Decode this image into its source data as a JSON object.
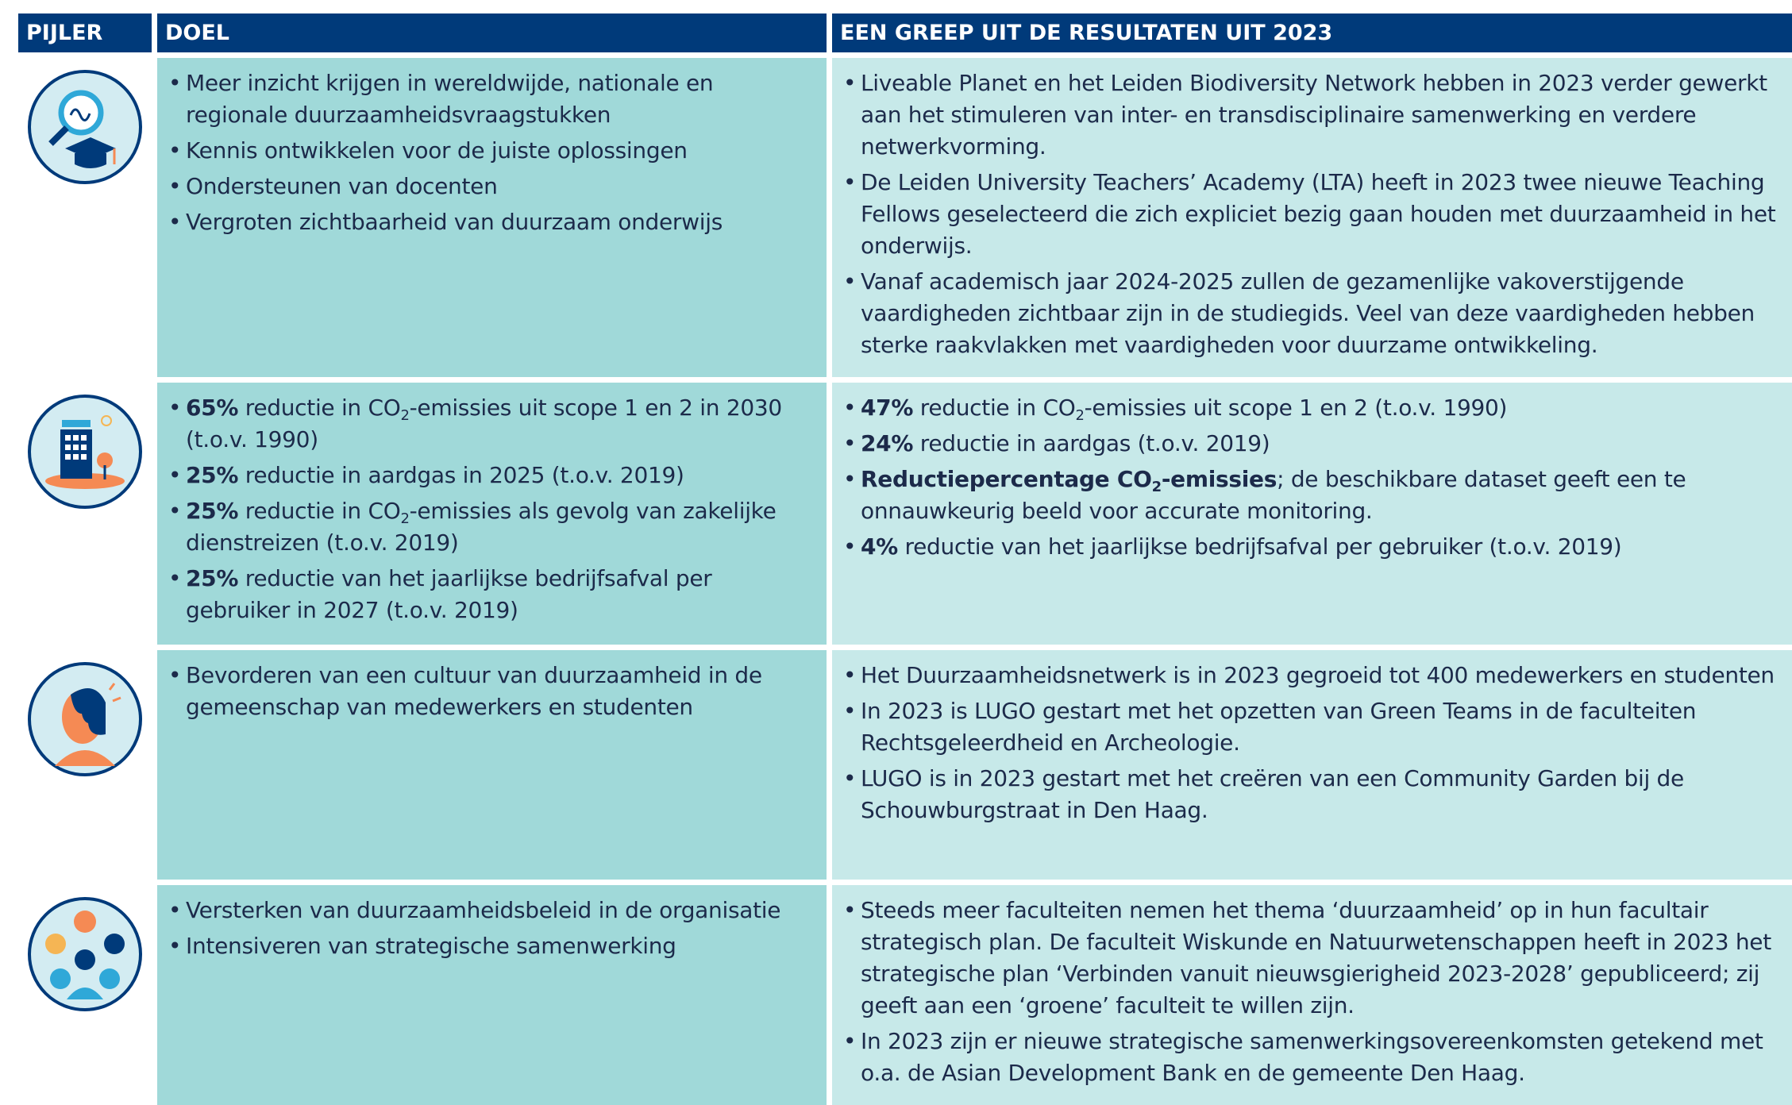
{
  "header": [
    "PIJLER",
    "DOEL",
    "EEN GREEP UIT DE RESULTATEN UIT 2023"
  ],
  "rows": [
    {
      "goals": [
        [
          {
            "text": "Meer inzicht krijgen in wereldwijde, nationale en regionale duurzaamheidsvraagstukken"
          }
        ],
        [
          {
            "text": "Kennis ontwikkelen voor de juiste oplossingen"
          }
        ],
        [
          {
            "text": "Ondersteunen van docenten"
          }
        ],
        [
          {
            "text": "Vergroten zichtbaarheid  van duurzaam onderwijs"
          }
        ]
      ],
      "results": [
        [
          {
            "text": "Liveable Planet en het Leiden Biodiversity Network hebben in 2023 verder gewerkt aan het stimuleren van inter- en transdisciplinaire samenwerking en verdere netwerkvorming."
          }
        ],
        [
          {
            "text": "De Leiden University Teachers’ Academy (LTA) heeft in 2023 twee nieuwe Teaching Fellows geselecteerd die zich expliciet bezig gaan houden met duurzaamheid in het onderwijs."
          }
        ],
        [
          {
            "text": "Vanaf academisch jaar 2024-2025 zullen de gezamenlijke vakoverstijgende vaardigheden zichtbaar zijn in de studiegids. Veel van deze vaardigheden hebben sterke raakvlakken met vaardigheden voor duurzame ontwikkeling."
          }
        ]
      ]
    },
    {
      "goals": [
        [
          {
            "text": "65%",
            "style": "bold"
          },
          {
            "text": " reductie in CO"
          },
          {
            "text": "2",
            "style": "sub"
          },
          {
            "text": "-emissies uit scope 1 en 2 in 2030 (t.o.v. 1990)"
          }
        ],
        [
          {
            "text": "25%",
            "style": "bold"
          },
          {
            "text": " reductie in aardgas in 2025 (t.o.v. 2019)"
          }
        ],
        [
          {
            "text": "25%",
            "style": "bold"
          },
          {
            "text": " reductie in CO"
          },
          {
            "text": "2",
            "style": "sub"
          },
          {
            "text": "-emissies als gevolg van zakelijke dienstreizen (t.o.v. 2019)"
          }
        ],
        [
          {
            "text": "25%",
            "style": "bold"
          },
          {
            "text": " reductie van het jaarlijkse bedrijfsafval per gebruiker in 2027 (t.o.v. 2019)"
          }
        ]
      ],
      "results": [
        [
          {
            "text": "47%",
            "style": "bold"
          },
          {
            "text": " reductie in CO"
          },
          {
            "text": "2",
            "style": "sub"
          },
          {
            "text": "-emissies uit scope 1 en 2 (t.o.v. 1990)"
          }
        ],
        [
          {
            "text": "24%",
            "style": "bold"
          },
          {
            "text": " reductie in aardgas (t.o.v. 2019)"
          }
        ],
        [
          {
            "text": "Reductiepercentage CO",
            "style": "bold"
          },
          {
            "text": "2",
            "style": "bold-sub"
          },
          {
            "text": "-emissies",
            "style": "bold"
          },
          {
            "text": "; de beschikbare dataset geeft een te onnauwkeurig beeld voor accurate monitoring."
          }
        ],
        [
          {
            "text": "4%",
            "style": "bold"
          },
          {
            "text": " reductie van het jaarlijkse bedrijfsafval per gebruiker (t.o.v. 2019)"
          }
        ]
      ]
    },
    {
      "goals": [
        [
          {
            "text": "Bevorderen van een cultuur van duurzaamheid in de gemeenschap van medewerkers en studenten"
          }
        ]
      ],
      "results": [
        [
          {
            "text": "Het Duurzaamheidsnetwerk is in 2023 gegroeid tot 400 medewerkers en studenten"
          }
        ],
        [
          {
            "text": "In 2023 is LUGO gestart met het opzetten van Green Teams in de faculteiten Rechtsgeleerdheid en Archeologie."
          }
        ],
        [
          {
            "text": "LUGO is in 2023 gestart met het creëren van een Community Garden bij de Schouwburgstraat in Den Haag."
          }
        ]
      ]
    },
    {
      "goals": [
        [
          {
            "text": "Versterken van duurzaamheidsbeleid in de organisatie"
          }
        ],
        [
          {
            "text": "Intensiveren van strategische samenwerking"
          }
        ]
      ],
      "results": [
        [
          {
            "text": "Steeds meer faculteiten nemen het thema ‘duurzaamheid’ op in hun facultair strategisch plan. De faculteit Wiskunde en Natuurwetenschappen heeft in 2023 het strategische plan ‘Verbinden vanuit nieuwsgierigheid 2023-2028’ gepubliceerd; zij geeft aan een ‘groene’ faculteit te willen zijn."
          }
        ],
        [
          {
            "text": "In 2023 zijn er nieuwe strategische samenwerkingsovereenkomsten getekend met o.a. de Asian Development Bank en de gemeente Den Haag."
          }
        ]
      ]
    }
  ]
}
